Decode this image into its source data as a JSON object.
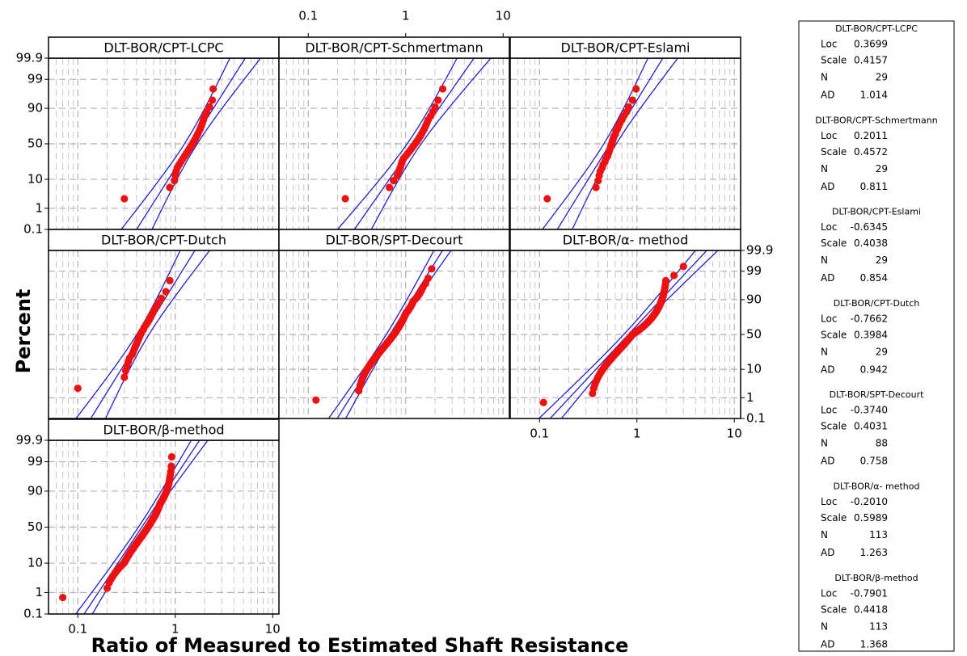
{
  "chart_data": {
    "type": "probability",
    "x_label": "Ratio of Measured to Estimated Shaft Resistance",
    "y_label": "Percent",
    "xlim": [
      0.05,
      11.6
    ],
    "xticks": [
      0.1,
      1,
      10
    ],
    "xminor": [
      0.06,
      0.07,
      0.08,
      0.09,
      0.2,
      0.3,
      0.4,
      0.5,
      0.6,
      0.7,
      0.8,
      0.9,
      2,
      3,
      4,
      5,
      6,
      7,
      8,
      9
    ],
    "ylim": [
      0.1,
      99.9
    ],
    "yticks": [
      0.1,
      1,
      10,
      50,
      90,
      99,
      99.9
    ],
    "grid": true,
    "point_color": "#ee1111",
    "line_color": "#1f1fcf",
    "stat_labels": [
      "Loc",
      "Scale",
      "N",
      "AD"
    ],
    "series": [
      {
        "name": "DLT-BOR/CPT-LCPC",
        "loc": 0.3699,
        "scale": 0.4157,
        "n": 29,
        "ad": 1.014,
        "values": [
          0.3,
          0.88,
          0.98,
          1.0,
          1.02,
          1.05,
          1.1,
          1.15,
          1.2,
          1.25,
          1.3,
          1.35,
          1.4,
          1.45,
          1.5,
          1.55,
          1.6,
          1.65,
          1.7,
          1.75,
          1.8,
          1.85,
          1.9,
          1.95,
          2.0,
          2.1,
          2.25,
          2.4,
          2.45
        ]
      },
      {
        "name": "DLT-BOR/CPT-Schmertmann",
        "loc": 0.2011,
        "scale": 0.4572,
        "n": 29,
        "ad": 0.811,
        "values": [
          0.24,
          0.68,
          0.75,
          0.82,
          0.85,
          0.88,
          0.9,
          0.92,
          0.95,
          1.0,
          1.05,
          1.1,
          1.15,
          1.2,
          1.25,
          1.3,
          1.35,
          1.4,
          1.45,
          1.5,
          1.55,
          1.6,
          1.65,
          1.7,
          1.8,
          1.9,
          2.0,
          2.15,
          2.4
        ]
      },
      {
        "name": "DLT-BOR/CPT-Eslami",
        "loc": -0.6345,
        "scale": 0.4038,
        "n": 29,
        "ad": 0.854,
        "values": [
          0.12,
          0.38,
          0.4,
          0.41,
          0.42,
          0.44,
          0.45,
          0.47,
          0.48,
          0.5,
          0.51,
          0.52,
          0.53,
          0.54,
          0.55,
          0.56,
          0.57,
          0.58,
          0.6,
          0.61,
          0.63,
          0.65,
          0.67,
          0.7,
          0.73,
          0.78,
          0.82,
          0.9,
          0.98
        ]
      },
      {
        "name": "DLT-BOR/CPT-Dutch",
        "loc": -0.7662,
        "scale": 0.3984,
        "n": 29,
        "ad": 0.942,
        "values": [
          0.1,
          0.3,
          0.31,
          0.32,
          0.33,
          0.34,
          0.36,
          0.37,
          0.38,
          0.39,
          0.4,
          0.41,
          0.42,
          0.43,
          0.44,
          0.45,
          0.47,
          0.48,
          0.5,
          0.52,
          0.54,
          0.56,
          0.58,
          0.6,
          0.63,
          0.67,
          0.72,
          0.8,
          0.88
        ]
      },
      {
        "name": "DLT-BOR/SPT-Decourt",
        "loc": {
          "value": -0.374,
          "label": "-0.3740"
        },
        "scale": 0.4031,
        "n": 88,
        "ad": 0.758,
        "values": [
          0.12,
          0.33,
          0.34,
          0.35,
          0.36,
          0.37,
          0.38,
          0.39,
          0.4,
          0.41,
          0.42,
          0.43,
          0.44,
          0.45,
          0.46,
          0.47,
          0.48,
          0.49,
          0.5,
          0.51,
          0.52,
          0.53,
          0.54,
          0.55,
          0.56,
          0.57,
          0.58,
          0.59,
          0.6,
          0.61,
          0.62,
          0.63,
          0.64,
          0.65,
          0.66,
          0.67,
          0.68,
          0.69,
          0.7,
          0.71,
          0.72,
          0.73,
          0.74,
          0.75,
          0.76,
          0.77,
          0.78,
          0.79,
          0.8,
          0.81,
          0.82,
          0.83,
          0.84,
          0.85,
          0.86,
          0.87,
          0.88,
          0.89,
          0.9,
          0.91,
          0.92,
          0.93,
          0.94,
          0.95,
          0.96,
          0.97,
          0.98,
          0.99,
          1.0,
          1.01,
          1.04,
          1.06,
          1.08,
          1.1,
          1.12,
          1.14,
          1.16,
          1.18,
          1.2,
          1.25,
          1.3,
          1.35,
          1.4,
          1.45,
          1.5,
          1.6,
          1.7,
          1.85
        ]
      },
      {
        "name": "DLT-BOR/α- method",
        "loc": {
          "value": -0.201,
          "label": "-0.2010"
        },
        "scale": 0.5989,
        "n": 113,
        "ad": 1.263,
        "values": [
          0.11,
          0.35,
          0.36,
          0.37,
          0.38,
          0.39,
          0.4,
          0.41,
          0.42,
          0.43,
          0.44,
          0.45,
          0.46,
          0.47,
          0.48,
          0.49,
          0.5,
          0.51,
          0.52,
          0.53,
          0.54,
          0.55,
          0.56,
          0.57,
          0.58,
          0.59,
          0.6,
          0.61,
          0.62,
          0.63,
          0.64,
          0.65,
          0.66,
          0.67,
          0.68,
          0.69,
          0.7,
          0.71,
          0.72,
          0.73,
          0.74,
          0.75,
          0.76,
          0.77,
          0.78,
          0.79,
          0.8,
          0.81,
          0.82,
          0.83,
          0.84,
          0.85,
          0.86,
          0.87,
          0.88,
          0.89,
          0.9,
          0.92,
          0.94,
          0.96,
          0.98,
          1.0,
          1.02,
          1.04,
          1.06,
          1.08,
          1.1,
          1.12,
          1.14,
          1.16,
          1.18,
          1.2,
          1.22,
          1.24,
          1.26,
          1.28,
          1.3,
          1.32,
          1.34,
          1.36,
          1.38,
          1.4,
          1.42,
          1.44,
          1.46,
          1.48,
          1.5,
          1.52,
          1.54,
          1.56,
          1.58,
          1.6,
          1.62,
          1.64,
          1.66,
          1.68,
          1.7,
          1.72,
          1.74,
          1.76,
          1.78,
          1.8,
          1.82,
          1.84,
          1.86,
          1.88,
          1.9,
          1.92,
          1.94,
          1.96,
          1.98,
          2.4,
          3.0
        ]
      },
      {
        "name": "DLT-BOR/β-method",
        "loc": -0.7901,
        "scale": 0.4418,
        "n": 113,
        "ad": 1.368,
        "values": [
          0.07,
          0.2,
          0.21,
          0.22,
          0.23,
          0.24,
          0.25,
          0.26,
          0.27,
          0.28,
          0.29,
          0.3,
          0.305,
          0.31,
          0.315,
          0.32,
          0.325,
          0.33,
          0.335,
          0.34,
          0.345,
          0.35,
          0.355,
          0.36,
          0.365,
          0.37,
          0.375,
          0.38,
          0.385,
          0.39,
          0.395,
          0.4,
          0.405,
          0.41,
          0.415,
          0.42,
          0.425,
          0.43,
          0.435,
          0.44,
          0.445,
          0.45,
          0.455,
          0.46,
          0.465,
          0.47,
          0.475,
          0.48,
          0.485,
          0.49,
          0.495,
          0.5,
          0.505,
          0.51,
          0.515,
          0.52,
          0.525,
          0.53,
          0.535,
          0.54,
          0.545,
          0.55,
          0.555,
          0.56,
          0.565,
          0.57,
          0.575,
          0.58,
          0.585,
          0.59,
          0.595,
          0.6,
          0.61,
          0.615,
          0.62,
          0.625,
          0.63,
          0.635,
          0.64,
          0.645,
          0.65,
          0.655,
          0.66,
          0.665,
          0.67,
          0.675,
          0.68,
          0.685,
          0.69,
          0.695,
          0.7,
          0.71,
          0.72,
          0.73,
          0.74,
          0.75,
          0.76,
          0.77,
          0.78,
          0.79,
          0.8,
          0.81,
          0.82,
          0.83,
          0.84,
          0.85,
          0.86,
          0.87,
          0.88,
          0.89,
          0.9,
          0.91,
          0.92
        ]
      }
    ]
  }
}
